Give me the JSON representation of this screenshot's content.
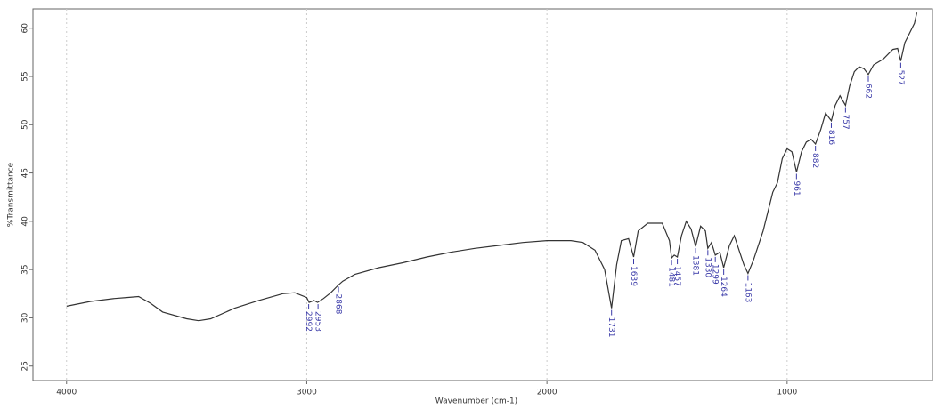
{
  "chart_data": {
    "type": "line",
    "xlabel": "Wavenumber (cm-1)",
    "ylabel": "%Transmittance",
    "color": "#333333",
    "x": [
      4000,
      3900,
      3800,
      3750,
      3700,
      3650,
      3600,
      3500,
      3450,
      3400,
      3300,
      3200,
      3100,
      3050,
      3000,
      2990,
      2970,
      2955,
      2930,
      2900,
      2868,
      2850,
      2800,
      2700,
      2600,
      2500,
      2400,
      2300,
      2200,
      2100,
      2000,
      1900,
      1850,
      1800,
      1760,
      1731,
      1710,
      1690,
      1660,
      1639,
      1620,
      1580,
      1520,
      1490,
      1481,
      1470,
      1457,
      1440,
      1420,
      1400,
      1381,
      1360,
      1340,
      1330,
      1315,
      1299,
      1280,
      1264,
      1240,
      1220,
      1200,
      1180,
      1163,
      1140,
      1100,
      1060,
      1040,
      1020,
      1000,
      980,
      961,
      940,
      920,
      900,
      882,
      860,
      840,
      816,
      800,
      780,
      757,
      740,
      720,
      700,
      680,
      662,
      640,
      600,
      560,
      540,
      527,
      510,
      490,
      470,
      460
    ],
    "values": [
      31.2,
      31.7,
      32.0,
      32.1,
      32.2,
      31.5,
      30.6,
      29.9,
      29.7,
      29.9,
      31.0,
      31.8,
      32.5,
      32.6,
      32.1,
      31.6,
      31.8,
      31.6,
      32.0,
      32.6,
      33.4,
      33.8,
      34.5,
      35.2,
      35.7,
      36.3,
      36.8,
      37.2,
      37.5,
      37.8,
      38.0,
      38.0,
      37.8,
      37.0,
      35.0,
      31.0,
      35.5,
      38.0,
      38.2,
      36.3,
      39.0,
      39.8,
      39.8,
      38.0,
      36.2,
      36.5,
      36.3,
      38.5,
      40.0,
      39.2,
      37.4,
      39.5,
      39.0,
      37.2,
      37.8,
      36.5,
      36.8,
      35.2,
      37.5,
      38.5,
      37.0,
      35.5,
      34.6,
      36.0,
      39.0,
      43.0,
      44.0,
      46.5,
      47.5,
      47.2,
      45.1,
      47.2,
      48.2,
      48.5,
      48.0,
      49.5,
      51.2,
      50.4,
      52.0,
      53.0,
      52.0,
      54.0,
      55.5,
      56.0,
      55.8,
      55.2,
      56.2,
      56.8,
      57.8,
      57.9,
      56.6,
      58.5,
      59.5,
      60.5,
      61.6
    ],
    "xlim": [
      4140,
      395
    ],
    "ylim": [
      23.5,
      62
    ],
    "xticks": [
      4000,
      3000,
      2000,
      1000
    ],
    "yticks": [
      25,
      30,
      35,
      40,
      45,
      50,
      55,
      60
    ],
    "grid": true,
    "peaks": [
      {
        "label": "2992",
        "x": 2992,
        "y": 31.6
      },
      {
        "label": "2953",
        "x": 2953,
        "y": 31.6
      },
      {
        "label": "2868",
        "x": 2868,
        "y": 33.4
      },
      {
        "label": "1731",
        "x": 1731,
        "y": 31.0
      },
      {
        "label": "1639",
        "x": 1639,
        "y": 36.3
      },
      {
        "label": "1481",
        "x": 1481,
        "y": 36.2
      },
      {
        "label": "1457",
        "x": 1457,
        "y": 36.3
      },
      {
        "label": "1381",
        "x": 1381,
        "y": 37.4
      },
      {
        "label": "1330",
        "x": 1330,
        "y": 37.2
      },
      {
        "label": "1299",
        "x": 1299,
        "y": 36.5
      },
      {
        "label": "1264",
        "x": 1264,
        "y": 35.2
      },
      {
        "label": "1163",
        "x": 1163,
        "y": 34.6
      },
      {
        "label": "961",
        "x": 961,
        "y": 45.1
      },
      {
        "label": "882",
        "x": 882,
        "y": 48.0
      },
      {
        "label": "816",
        "x": 816,
        "y": 50.4
      },
      {
        "label": "757",
        "x": 757,
        "y": 52.0
      },
      {
        "label": "662",
        "x": 662,
        "y": 55.2
      },
      {
        "label": "527",
        "x": 527,
        "y": 56.6
      }
    ]
  }
}
